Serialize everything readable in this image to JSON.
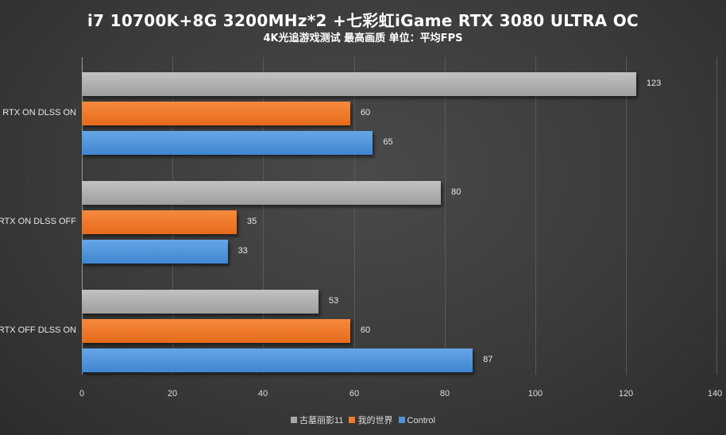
{
  "chart_data": {
    "type": "bar",
    "orientation": "horizontal",
    "title": "i7 10700K+8G 3200MHz*2 +七彩虹iGame RTX 3080 ULTRA OC",
    "subtitle": "4K光追游戏测试 最高画质 单位：平均FPS",
    "categories": [
      "RTX ON DLSS ON",
      "RTX ON DLSS OFF",
      "RTX OFF DLSS ON"
    ],
    "series": [
      {
        "name": "古墓丽影11",
        "color": "#a8a8a8",
        "values": [
          123,
          80,
          53
        ]
      },
      {
        "name": "我的世界",
        "color": "#ef7b2c",
        "values": [
          60,
          35,
          60
        ]
      },
      {
        "name": "Control",
        "color": "#4f93da",
        "values": [
          65,
          33,
          87
        ]
      }
    ],
    "xlabel": "",
    "ylabel": "",
    "xlim": [
      0,
      140
    ],
    "x_ticks": [
      "0",
      "20",
      "40",
      "60",
      "80",
      "100",
      "120",
      "140"
    ],
    "grid": true,
    "legend_position": "bottom"
  },
  "title": "i7 10700K+8G 3200MHz*2 +七彩虹iGame RTX 3080 ULTRA OC",
  "subtitle": "4K光追游戏测试 最高画质 单位：平均FPS",
  "categories": [
    "RTX ON DLSS ON",
    "RTX ON DLSS OFF",
    "RTX OFF DLSS ON"
  ],
  "ticks": [
    "0",
    "20",
    "40",
    "60",
    "80",
    "100",
    "120",
    "140"
  ],
  "legend": [
    "古墓丽影11",
    "我的世界",
    "Control"
  ],
  "values": [
    [
      "123",
      "60",
      "65"
    ],
    [
      "80",
      "35",
      "33"
    ],
    [
      "53",
      "60",
      "87"
    ]
  ]
}
